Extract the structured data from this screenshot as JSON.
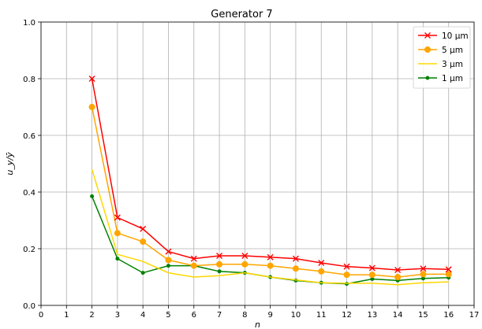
{
  "chart_data": {
    "type": "line",
    "title": "Generator 7",
    "xlabel": "n",
    "ylabel": "u_y/ȳ",
    "xlim": [
      0,
      17
    ],
    "ylim": [
      0.0,
      1.0
    ],
    "xticks": [
      0,
      1,
      2,
      3,
      4,
      5,
      6,
      7,
      8,
      9,
      10,
      11,
      12,
      13,
      14,
      15,
      16,
      17
    ],
    "yticks": [
      0.0,
      0.2,
      0.4,
      0.6,
      0.8,
      1.0
    ],
    "grid": true,
    "legend_position": "top-right",
    "x": [
      2,
      3,
      4,
      5,
      6,
      7,
      8,
      9,
      10,
      11,
      12,
      13,
      14,
      15,
      16
    ],
    "series": [
      {
        "name": "10 µm",
        "color": "#ff0000",
        "marker": "x",
        "values": [
          0.8,
          0.31,
          0.27,
          0.19,
          0.165,
          0.175,
          0.175,
          0.17,
          0.165,
          0.15,
          0.137,
          0.132,
          0.125,
          0.13,
          0.127
        ]
      },
      {
        "name": "5 µm",
        "color": "#ffa500",
        "marker": "circle",
        "values": [
          0.7,
          0.255,
          0.225,
          0.16,
          0.14,
          0.145,
          0.145,
          0.14,
          0.13,
          0.12,
          0.108,
          0.108,
          0.1,
          0.11,
          0.11
        ]
      },
      {
        "name": "3 µm",
        "color": "#ffd700",
        "marker": "none",
        "values": [
          0.48,
          0.18,
          0.155,
          0.115,
          0.1,
          0.105,
          0.115,
          0.1,
          0.09,
          0.08,
          0.078,
          0.078,
          0.073,
          0.08,
          0.083
        ]
      },
      {
        "name": "1 µm",
        "color": "#008000",
        "marker": "dot",
        "values": [
          0.385,
          0.165,
          0.115,
          0.14,
          0.14,
          0.12,
          0.115,
          0.1,
          0.088,
          0.08,
          0.076,
          0.093,
          0.088,
          0.095,
          0.098
        ]
      }
    ]
  }
}
